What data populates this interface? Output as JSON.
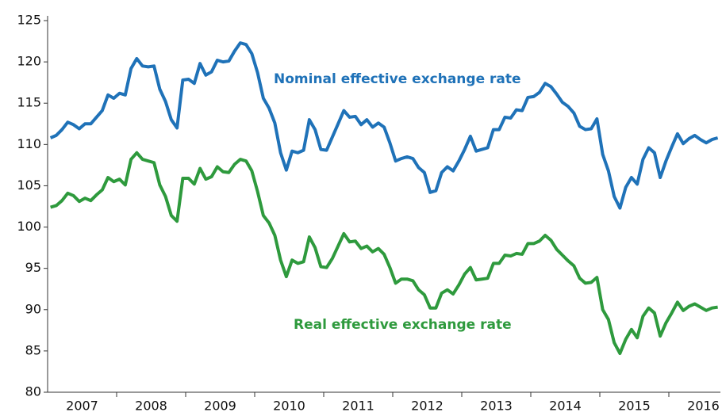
{
  "chart_data": {
    "type": "line",
    "categories": [
      null,
      null,
      null,
      null,
      null,
      "2007",
      null,
      null,
      null,
      null,
      null,
      null,
      null,
      null,
      null,
      null,
      null,
      "2008",
      null,
      null,
      null,
      null,
      null,
      null,
      null,
      null,
      null,
      null,
      null,
      "2009",
      null,
      null,
      null,
      null,
      null,
      null,
      null,
      null,
      null,
      null,
      null,
      "2010",
      null,
      null,
      null,
      null,
      null,
      null,
      null,
      null,
      null,
      null,
      null,
      "2011",
      null,
      null,
      null,
      null,
      null,
      null,
      null,
      null,
      null,
      null,
      null,
      "2012",
      null,
      null,
      null,
      null,
      null,
      null,
      null,
      null,
      null,
      null,
      null,
      "2013",
      null,
      null,
      null,
      null,
      null,
      null,
      null,
      null,
      null,
      null,
      null,
      "2014",
      null,
      null,
      null,
      null,
      null,
      null,
      null,
      null,
      null,
      null,
      null,
      "2015",
      null,
      null,
      null,
      null,
      null,
      null,
      null,
      null,
      null,
      null,
      null,
      "2016",
      null,
      null,
      null
    ],
    "series": [
      {
        "name": "Nominal effective exchange rate",
        "color": "#1f72b8",
        "values": [
          110.8,
          111.1,
          111.8,
          112.7,
          112.4,
          111.9,
          112.5,
          112.5,
          113.3,
          114.1,
          116.0,
          115.6,
          116.2,
          116.0,
          119.2,
          120.4,
          119.5,
          119.4,
          119.5,
          116.7,
          115.2,
          113.0,
          112.0,
          117.8,
          117.9,
          117.4,
          119.8,
          118.4,
          118.8,
          120.2,
          120.0,
          120.1,
          121.3,
          122.3,
          122.1,
          121.0,
          118.7,
          115.6,
          114.4,
          112.6,
          109.0,
          106.9,
          109.2,
          109.0,
          109.3,
          113.0,
          111.8,
          109.4,
          109.3,
          110.9,
          112.5,
          114.1,
          113.3,
          113.4,
          112.4,
          113.0,
          112.1,
          112.6,
          112.1,
          110.2,
          108.0,
          108.3,
          108.5,
          108.3,
          107.2,
          106.6,
          104.2,
          104.4,
          106.6,
          107.3,
          106.8,
          108.0,
          109.4,
          111.0,
          109.2,
          109.4,
          109.6,
          111.8,
          111.8,
          113.3,
          113.2,
          114.2,
          114.1,
          115.7,
          115.8,
          116.3,
          117.4,
          117.0,
          116.1,
          115.1,
          114.6,
          113.8,
          112.2,
          111.8,
          111.9,
          113.1,
          108.8,
          106.8,
          103.7,
          102.3,
          104.8,
          106.0,
          105.2,
          108.2,
          109.6,
          109.0,
          106.0,
          108.0,
          109.7,
          111.3,
          110.1,
          110.7,
          111.1,
          110.6,
          110.2,
          110.6,
          110.8
        ]
      },
      {
        "name": "Real effective exchange rate",
        "color": "#2e9a3d",
        "values": [
          102.4,
          102.6,
          103.2,
          104.1,
          103.8,
          103.1,
          103.5,
          103.2,
          103.9,
          104.5,
          106.0,
          105.5,
          105.8,
          105.1,
          108.2,
          109.0,
          108.2,
          108.0,
          107.8,
          105.1,
          103.7,
          101.4,
          100.7,
          105.9,
          105.9,
          105.2,
          107.1,
          105.8,
          106.1,
          107.3,
          106.7,
          106.6,
          107.6,
          108.2,
          108.0,
          106.8,
          104.3,
          101.4,
          100.5,
          99.0,
          96.0,
          94.0,
          96.0,
          95.6,
          95.8,
          98.8,
          97.5,
          95.2,
          95.1,
          96.2,
          97.7,
          99.2,
          98.2,
          98.3,
          97.4,
          97.7,
          97.0,
          97.4,
          96.7,
          95.1,
          93.2,
          93.7,
          93.7,
          93.5,
          92.4,
          91.8,
          90.2,
          90.2,
          92.0,
          92.4,
          91.9,
          93.0,
          94.3,
          95.1,
          93.6,
          93.7,
          93.8,
          95.6,
          95.6,
          96.6,
          96.5,
          96.8,
          96.7,
          98.0,
          98.0,
          98.3,
          99.0,
          98.4,
          97.3,
          96.6,
          95.9,
          95.3,
          93.8,
          93.2,
          93.3,
          93.9,
          90.0,
          88.8,
          86.0,
          84.7,
          86.4,
          87.6,
          86.6,
          89.2,
          90.2,
          89.6,
          86.8,
          88.4,
          89.6,
          90.9,
          89.9,
          90.4,
          90.7,
          90.3,
          89.9,
          90.2,
          90.3
        ]
      }
    ],
    "ylim": [
      80,
      125
    ],
    "yticks": [
      80,
      85,
      90,
      95,
      100,
      105,
      110,
      115,
      120,
      125
    ],
    "grid": false
  }
}
